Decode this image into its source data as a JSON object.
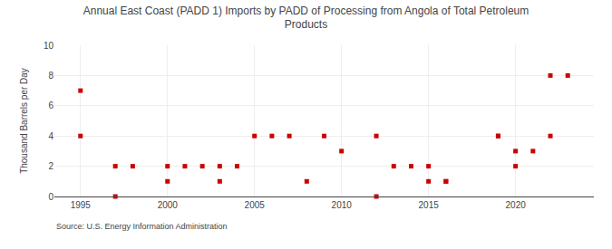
{
  "chart_data": {
    "type": "scatter",
    "title": "Annual East Coast (PADD 1) Imports by PADD of Processing from Angola of Total Petroleum\nProducts",
    "ylabel": "Thousand Barrels per Day",
    "source": "Source: U.S. Energy Information Administration",
    "color": "#cc0000",
    "marker": "square",
    "grid": true,
    "xlim": [
      1993.5,
      2024.5
    ],
    "ylim": [
      0,
      10
    ],
    "xticks": [
      1995,
      2000,
      2005,
      2010,
      2015,
      2020
    ],
    "yticks": [
      0,
      2,
      4,
      6,
      8,
      10
    ],
    "x": [
      1995,
      1995,
      1997,
      1997,
      1998,
      2000,
      2000,
      2001,
      2002,
      2003,
      2003,
      2004,
      2005,
      2006,
      2007,
      2008,
      2009,
      2010,
      2012,
      2012,
      2013,
      2014,
      2015,
      2015,
      2016,
      2016,
      2019,
      2019,
      2020,
      2020,
      2021,
      2022,
      2022,
      2023
    ],
    "values": [
      7,
      4,
      0,
      2,
      2,
      1,
      2,
      2,
      2,
      1,
      2,
      2,
      4,
      4,
      4,
      1,
      4,
      3,
      0,
      4,
      2,
      2,
      1,
      2,
      1,
      1,
      4,
      4,
      2,
      3,
      3,
      4,
      8,
      8
    ]
  }
}
